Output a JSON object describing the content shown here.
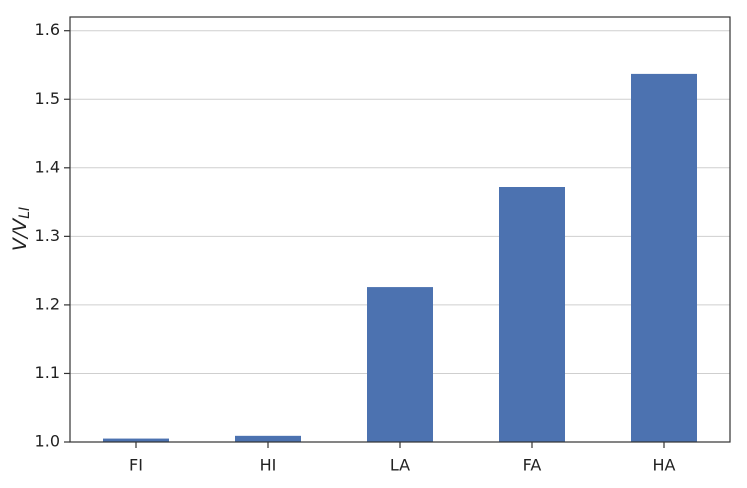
{
  "chart_data": {
    "type": "bar",
    "y_label": {
      "main": "V/V",
      "sub": "LI"
    },
    "categories": [
      "FI",
      "HI",
      "LA",
      "FA",
      "HA"
    ],
    "values": [
      1.005,
      1.009,
      1.226,
      1.372,
      1.537
    ],
    "color": "#4c72b0",
    "ylim": [
      1.0,
      1.62
    ],
    "yticks": [
      {
        "value": 1,
        "label": "1.0"
      },
      1.1,
      1.2,
      1.3,
      1.4,
      1.5,
      1.6
    ],
    "grid": true
  }
}
